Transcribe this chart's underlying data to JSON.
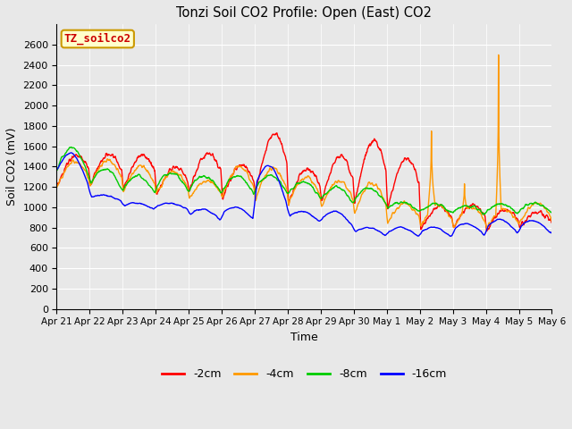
{
  "title": "Tonzi Soil CO2 Profile: Open (East) CO2",
  "xlabel": "Time",
  "ylabel": "Soil CO2 (mV)",
  "ylim": [
    0,
    2800
  ],
  "yticks": [
    0,
    200,
    400,
    600,
    800,
    1000,
    1200,
    1400,
    1600,
    1800,
    2000,
    2200,
    2400,
    2600
  ],
  "colors": {
    "-2cm": "#ff0000",
    "-4cm": "#ff9900",
    "-8cm": "#00cc00",
    "-16cm": "#0000ff"
  },
  "legend_labels": [
    "-2cm",
    "-4cm",
    "-8cm",
    "-16cm"
  ],
  "box_label": "TZ_soilco2",
  "box_facecolor": "#ffffcc",
  "box_edgecolor": "#cc9900",
  "box_textcolor": "#cc0000",
  "bg_color": "#e8e8e8",
  "plot_bg": "#e8e8e8",
  "grid_color": "#ffffff",
  "xtick_labels": [
    "Apr 21",
    "Apr 22",
    "Apr 23",
    "Apr 24",
    "Apr 25",
    "Apr 26",
    "Apr 27",
    "Apr 28",
    "Apr 29",
    "Apr 30",
    "May 1",
    "May 2",
    "May 3",
    "May 4",
    "May 5",
    "May 6"
  ],
  "n_days": 15,
  "pts_per_day": 96
}
